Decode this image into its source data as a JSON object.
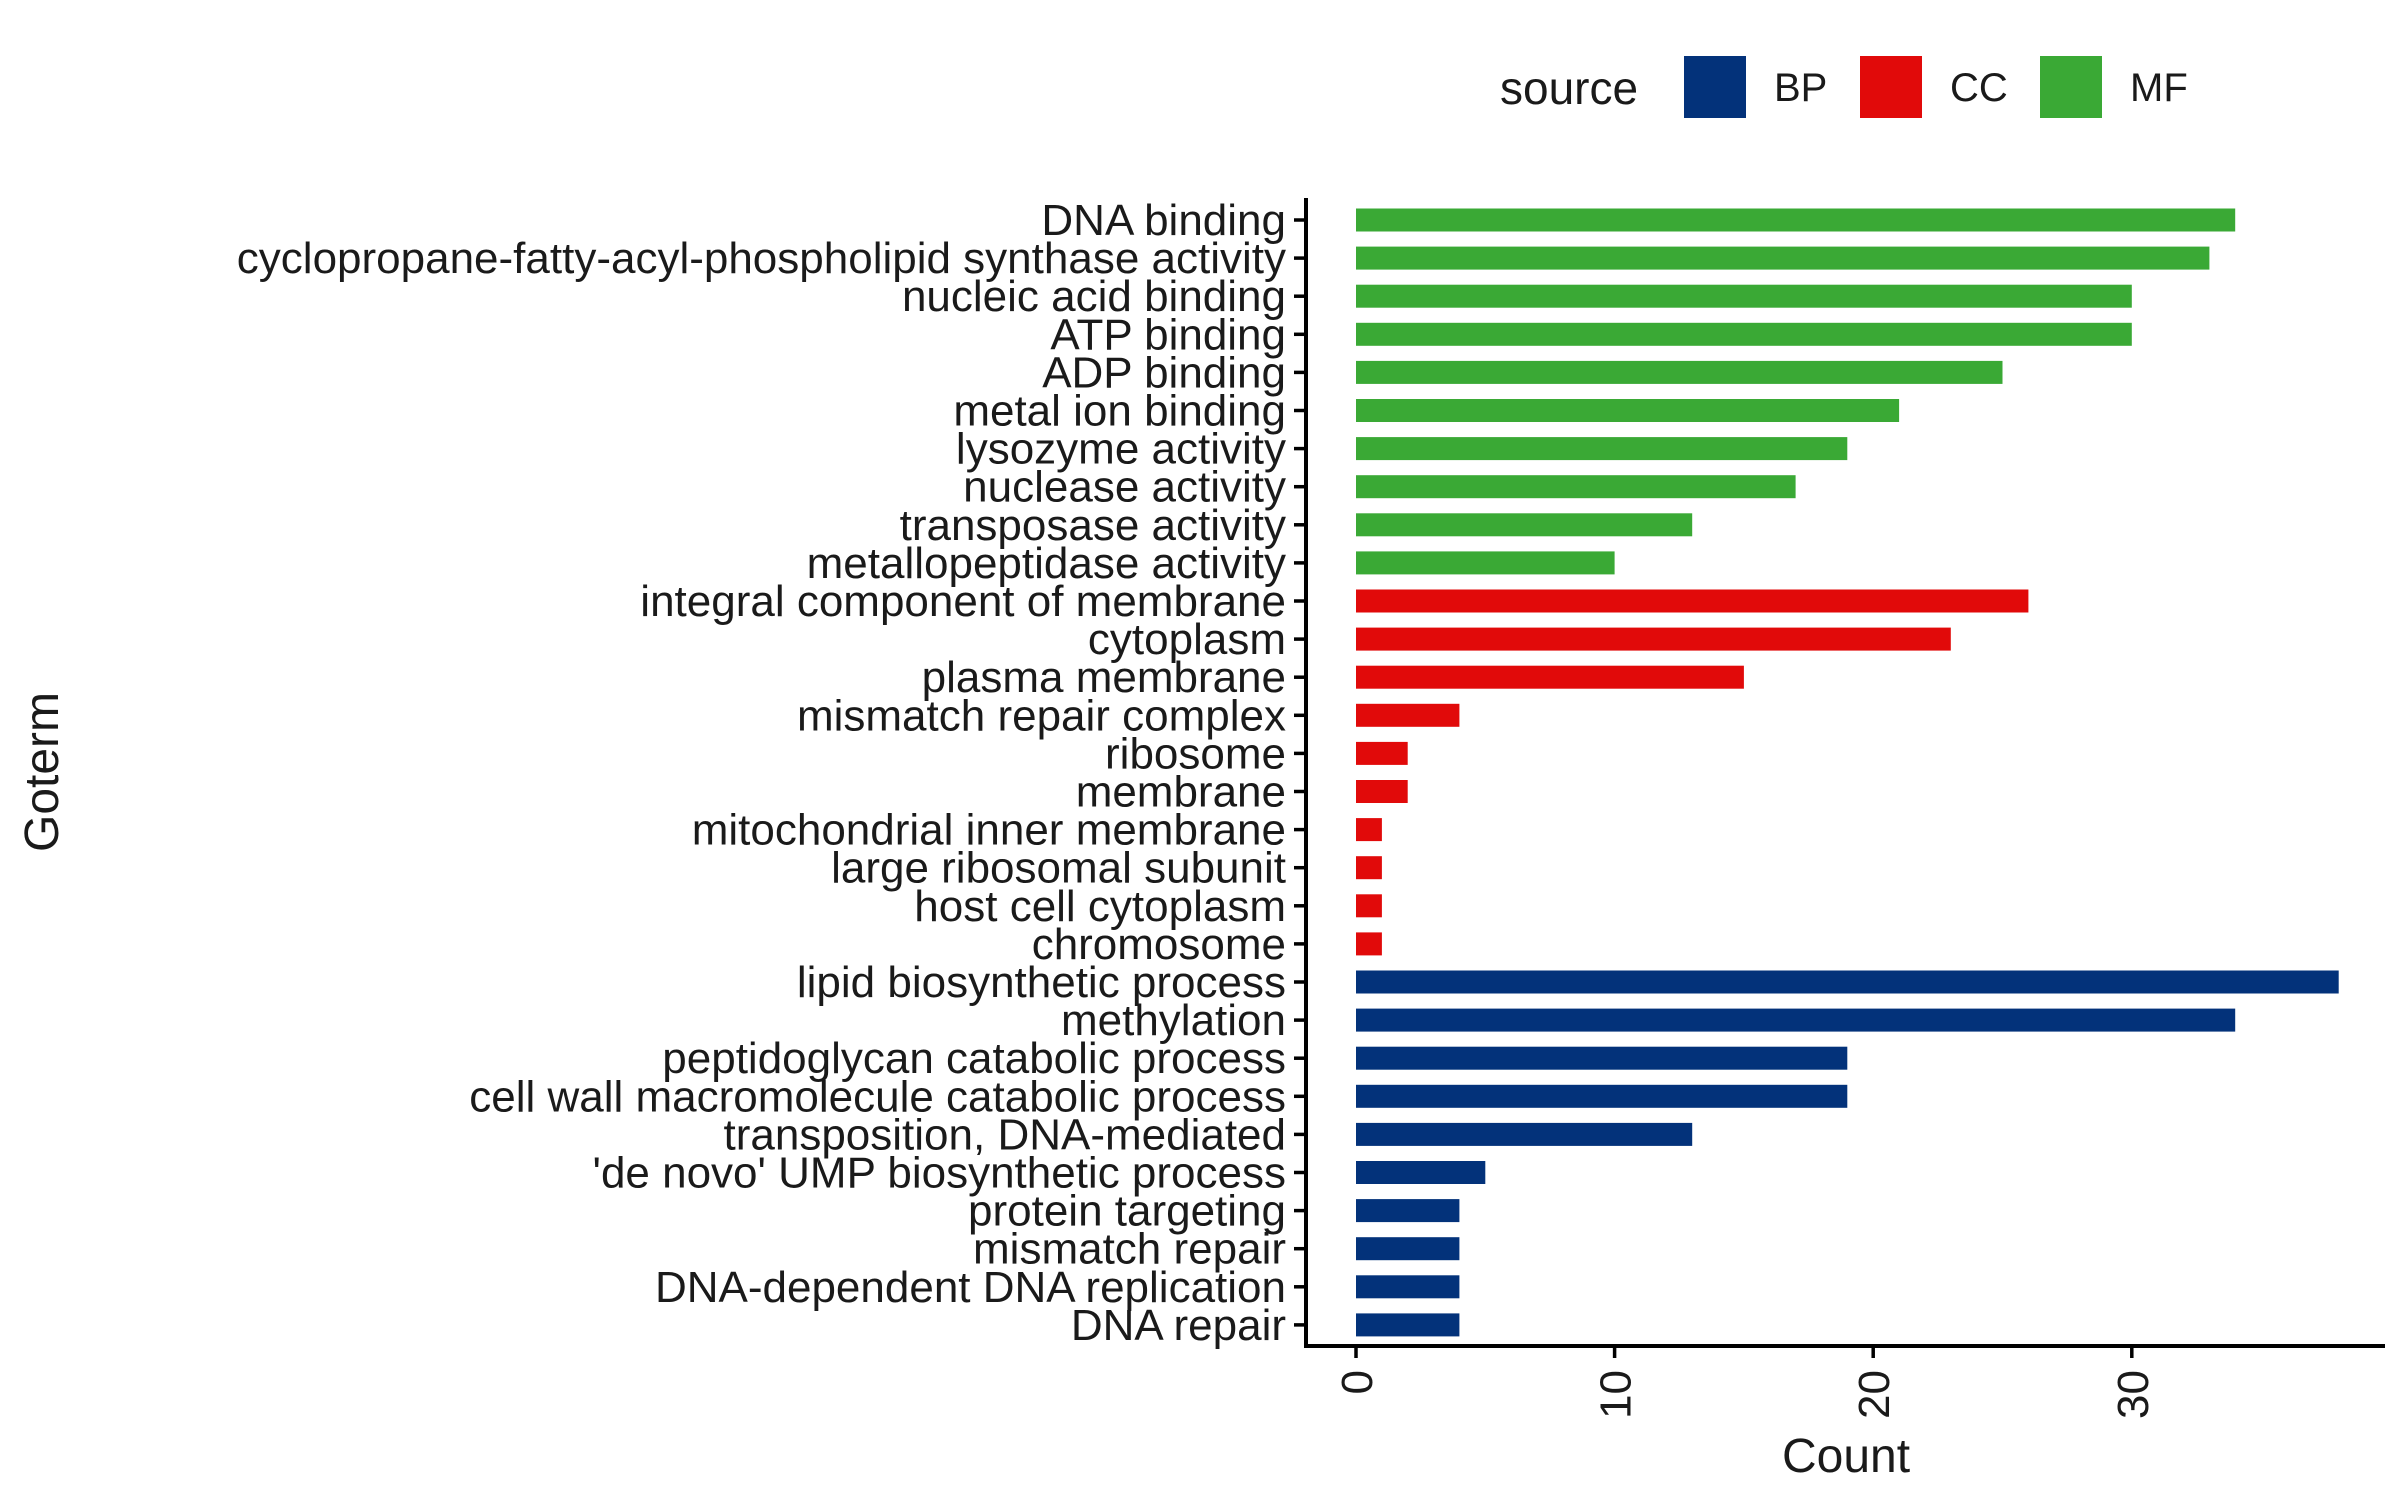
{
  "chart_data": {
    "type": "bar",
    "orientation": "horizontal",
    "xlabel": "Count",
    "ylabel": "Goterm",
    "xlim": [
      0,
      38
    ],
    "xticks": [
      0,
      10,
      20,
      30
    ],
    "grid": false,
    "legend": {
      "title": "source",
      "placement": "top",
      "entries": [
        {
          "name": "BP",
          "color": "#03327a"
        },
        {
          "name": "CC",
          "color": "#e10a0a"
        },
        {
          "name": "MF",
          "color": "#3aa935"
        }
      ]
    },
    "bars": [
      {
        "label": "DNA binding",
        "value": 34,
        "source": "MF"
      },
      {
        "label": "cyclopropane-fatty-acyl-phospholipid synthase activity",
        "value": 33,
        "source": "MF"
      },
      {
        "label": "nucleic acid binding",
        "value": 30,
        "source": "MF"
      },
      {
        "label": "ATP binding",
        "value": 30,
        "source": "MF"
      },
      {
        "label": "ADP binding",
        "value": 25,
        "source": "MF"
      },
      {
        "label": "metal ion binding",
        "value": 21,
        "source": "MF"
      },
      {
        "label": "lysozyme activity",
        "value": 19,
        "source": "MF"
      },
      {
        "label": "nuclease activity",
        "value": 17,
        "source": "MF"
      },
      {
        "label": "transposase activity",
        "value": 13,
        "source": "MF"
      },
      {
        "label": "metallopeptidase activity",
        "value": 10,
        "source": "MF"
      },
      {
        "label": "integral component of membrane",
        "value": 26,
        "source": "CC"
      },
      {
        "label": "cytoplasm",
        "value": 23,
        "source": "CC"
      },
      {
        "label": "plasma membrane",
        "value": 15,
        "source": "CC"
      },
      {
        "label": "mismatch repair complex",
        "value": 4,
        "source": "CC"
      },
      {
        "label": "ribosome",
        "value": 2,
        "source": "CC"
      },
      {
        "label": "membrane",
        "value": 2,
        "source": "CC"
      },
      {
        "label": "mitochondrial inner membrane",
        "value": 1,
        "source": "CC"
      },
      {
        "label": "large ribosomal subunit",
        "value": 1,
        "source": "CC"
      },
      {
        "label": "host cell cytoplasm",
        "value": 1,
        "source": "CC"
      },
      {
        "label": "chromosome",
        "value": 1,
        "source": "CC"
      },
      {
        "label": "lipid biosynthetic process",
        "value": 38,
        "source": "BP"
      },
      {
        "label": "methylation",
        "value": 34,
        "source": "BP"
      },
      {
        "label": "peptidoglycan catabolic process",
        "value": 19,
        "source": "BP"
      },
      {
        "label": "cell wall macromolecule catabolic process",
        "value": 19,
        "source": "BP"
      },
      {
        "label": "transposition, DNA-mediated",
        "value": 13,
        "source": "BP"
      },
      {
        "label": "'de novo' UMP biosynthetic process",
        "value": 5,
        "source": "BP"
      },
      {
        "label": "protein targeting",
        "value": 4,
        "source": "BP"
      },
      {
        "label": "mismatch repair",
        "value": 4,
        "source": "BP"
      },
      {
        "label": "DNA-dependent DNA replication",
        "value": 4,
        "source": "BP"
      },
      {
        "label": "DNA repair",
        "value": 4,
        "source": "BP"
      }
    ]
  }
}
